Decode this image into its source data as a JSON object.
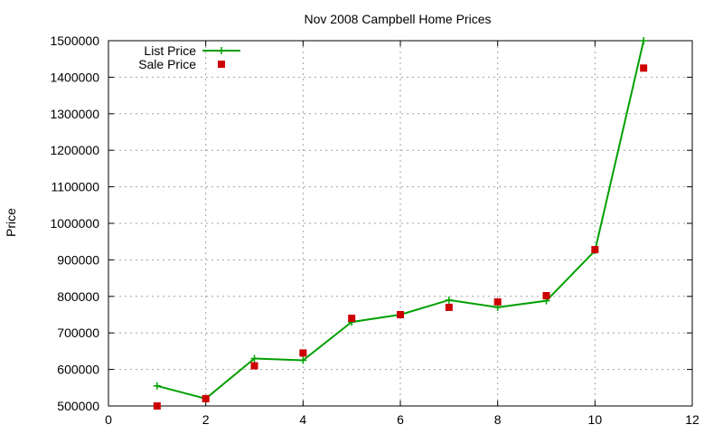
{
  "chart_data": {
    "type": "line",
    "title": "Nov 2008 Campbell Home Prices",
    "xlabel": "",
    "ylabel": "Price",
    "xlim": [
      0,
      12
    ],
    "ylim": [
      500000,
      1500000
    ],
    "x_ticks": [
      0,
      2,
      4,
      6,
      8,
      10,
      12
    ],
    "y_ticks": [
      500000,
      600000,
      700000,
      800000,
      900000,
      1000000,
      1100000,
      1200000,
      1300000,
      1400000,
      1500000
    ],
    "grid": true,
    "legend_position": "top-left",
    "series": [
      {
        "name": "List Price",
        "style": "line+cross",
        "color": "#00a000",
        "x": [
          1,
          2,
          3,
          4,
          5,
          6,
          7,
          8,
          9,
          10,
          11
        ],
        "y": [
          555000,
          520000,
          630000,
          625000,
          730000,
          750000,
          790000,
          770000,
          788000,
          925000,
          1500000
        ]
      },
      {
        "name": "Sale Price",
        "style": "square",
        "color": "#cc0000",
        "x": [
          1,
          2,
          3,
          4,
          5,
          6,
          7,
          8,
          9,
          10,
          11
        ],
        "y": [
          500000,
          520000,
          610000,
          645000,
          740000,
          750000,
          770000,
          785000,
          802000,
          928000,
          1425000
        ]
      }
    ]
  }
}
